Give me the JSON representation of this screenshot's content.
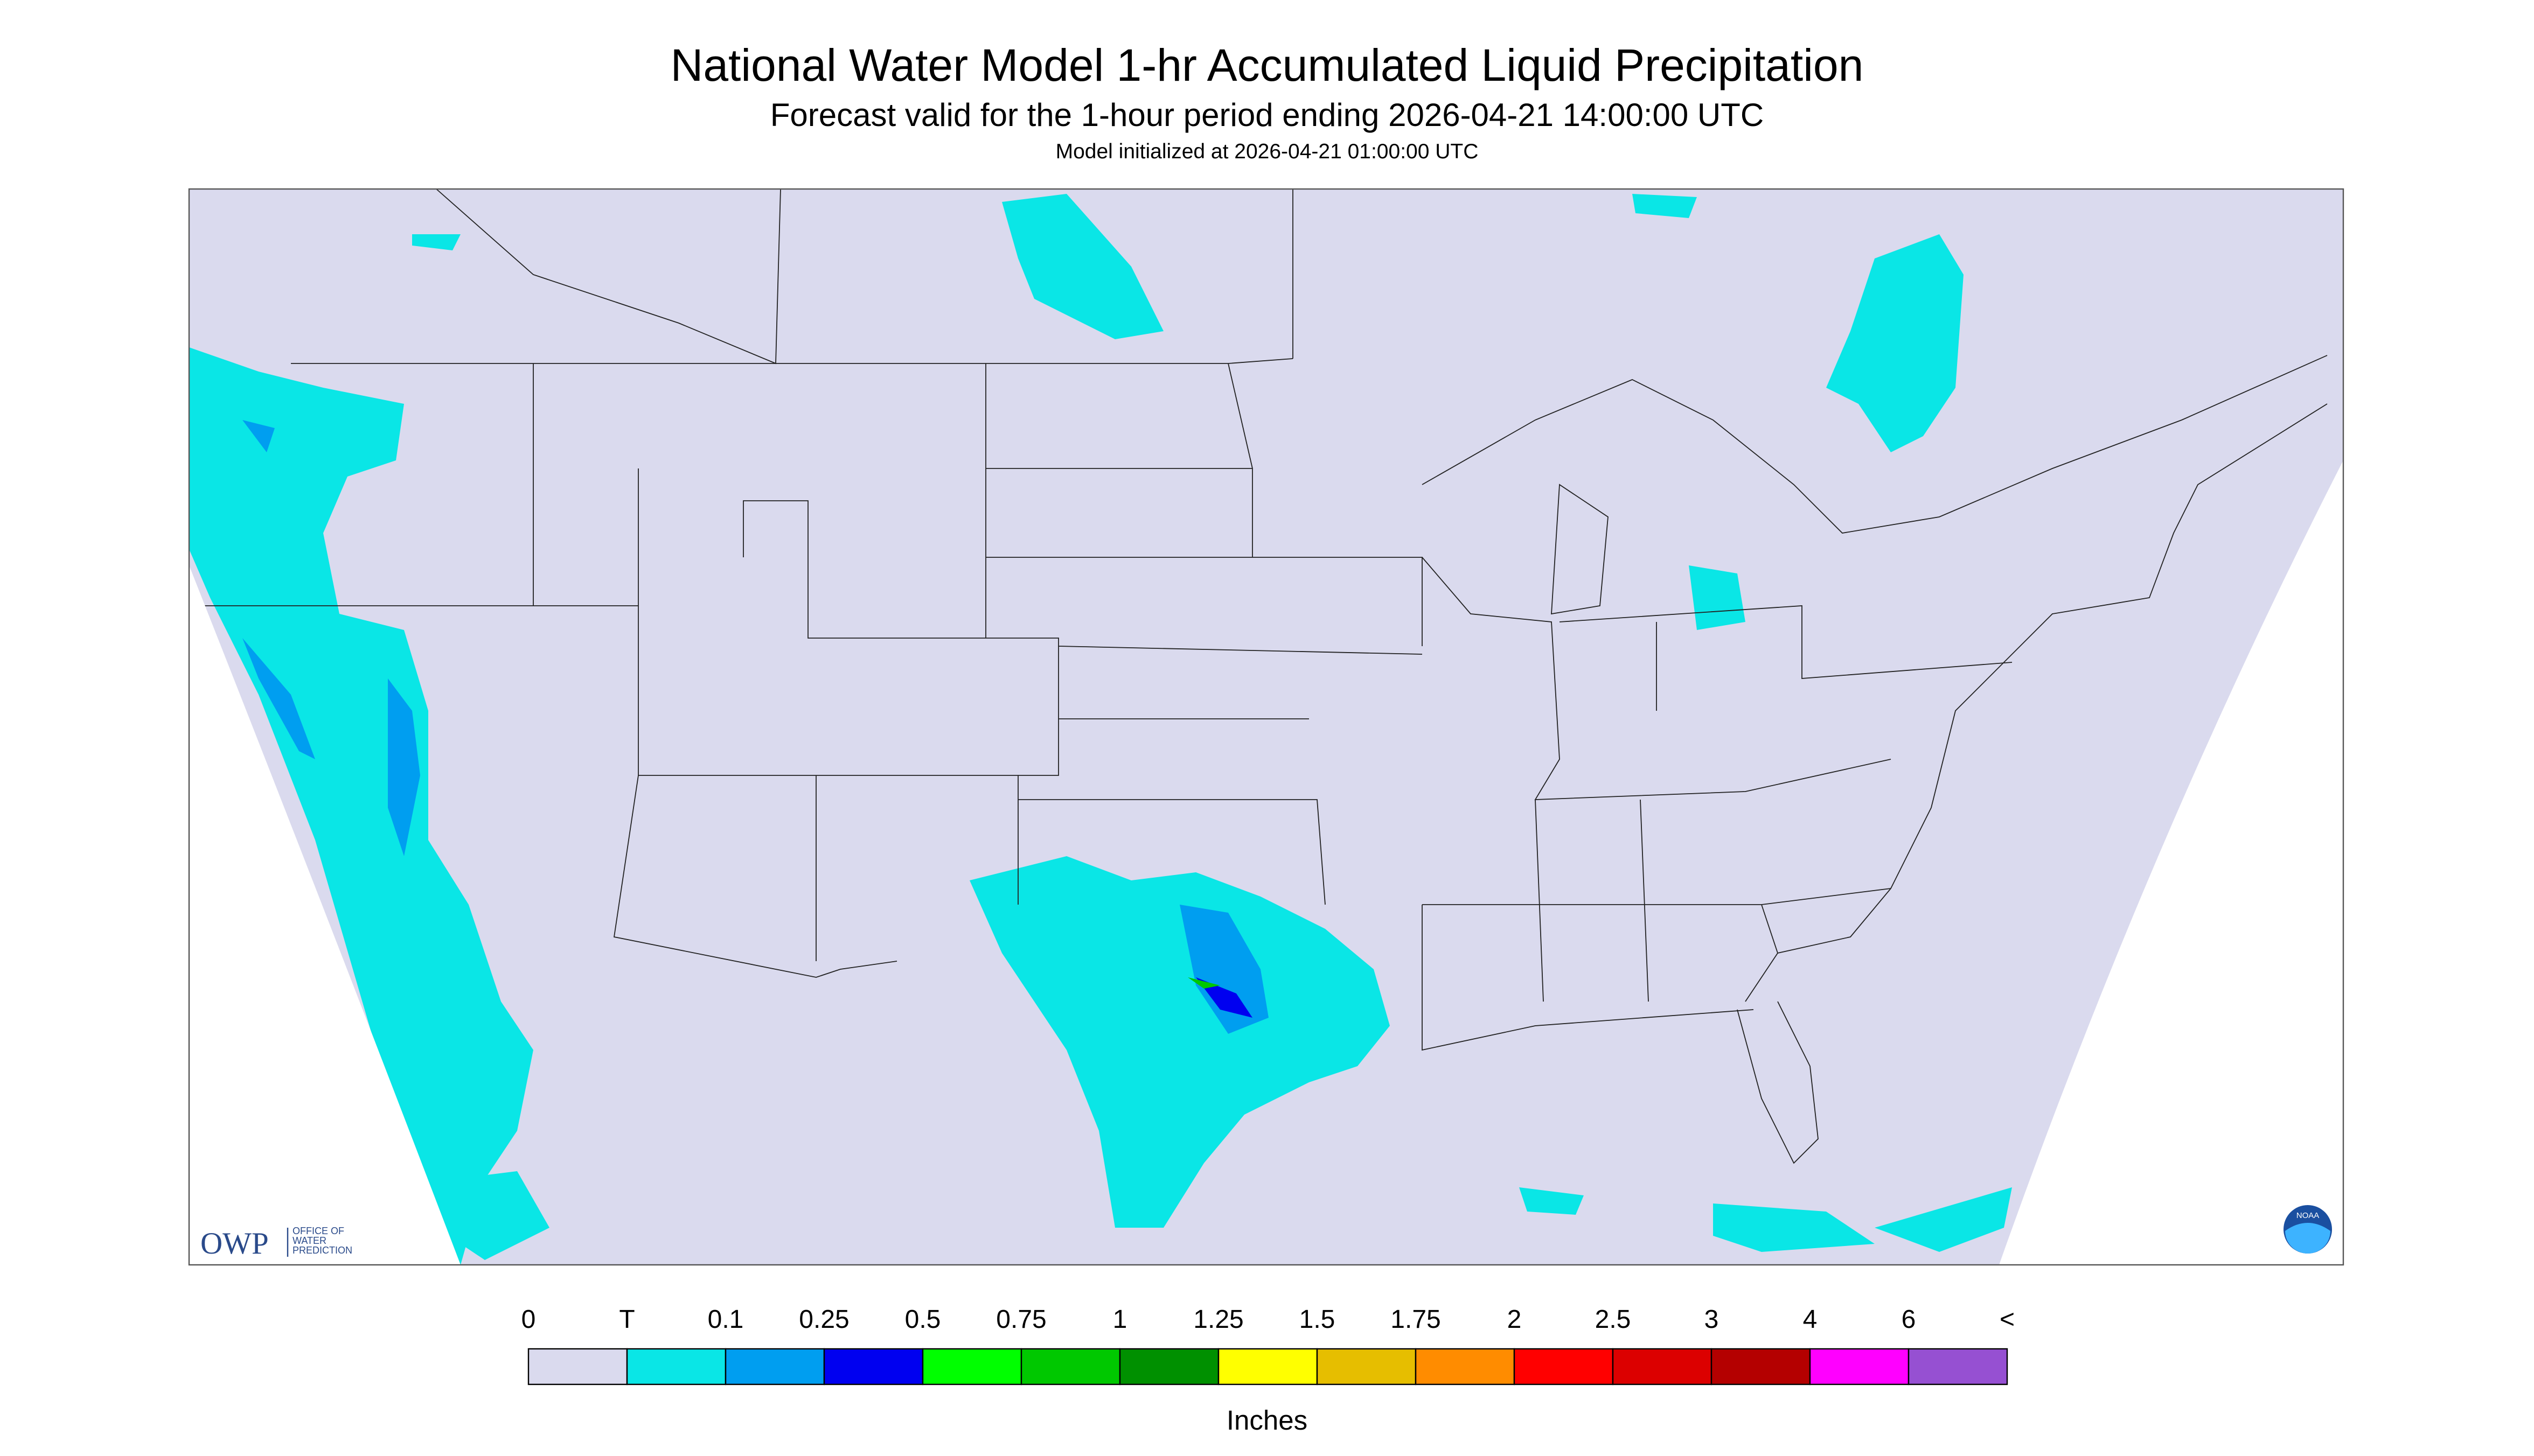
{
  "header": {
    "title": "National Water Model 1-hr Accumulated Liquid Precipitation",
    "subtitle": "Forecast valid for the 1-hour period ending 2026-04-21 14:00:00 UTC",
    "initialized": "Model initialized at 2026-04-21 01:00:00 UTC"
  },
  "map": {
    "logo": "OWP",
    "logo_caption": [
      "OFFICE OF",
      "WATER",
      "PREDICTION"
    ],
    "badge": "NOAA"
  },
  "legend": {
    "labels": [
      "0",
      "T",
      "0.1",
      "0.25",
      "0.5",
      "0.75",
      "1",
      "1.25",
      "1.5",
      "1.75",
      "2",
      "2.5",
      "3",
      "4",
      "6",
      "<"
    ],
    "colors": [
      "#dadaee",
      "#0ae6e6",
      "#009ef0",
      "#0000f0",
      "#00ff00",
      "#00c800",
      "#009000",
      "#ffff00",
      "#e6be00",
      "#ff8c00",
      "#ff0000",
      "#dc0000",
      "#b40000",
      "#ff00ff",
      "#9650d2"
    ],
    "unit": "Inches"
  }
}
